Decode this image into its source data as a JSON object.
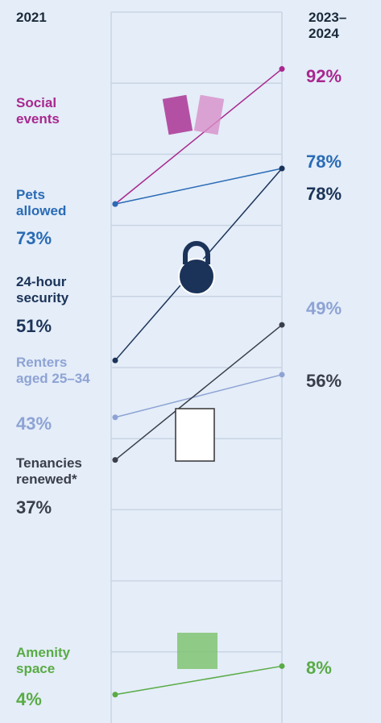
{
  "chart_data": {
    "type": "slope",
    "categories": [
      "2021",
      "2023–2024"
    ],
    "ylim": [
      0,
      100
    ],
    "yticks": [
      10,
      20,
      30,
      40,
      50,
      60,
      70,
      80,
      90
    ],
    "grid": true,
    "series": [
      {
        "name": "Social events",
        "color": "#a8288f",
        "values": [
          73,
          92
        ],
        "value_labels": [
          null,
          "92%"
        ]
      },
      {
        "name": "Pets allowed",
        "color": "#2a6bb5",
        "values": [
          73,
          78
        ],
        "value_labels": [
          "73%",
          "78%"
        ]
      },
      {
        "name": "24-hour security",
        "color": "#1b3358",
        "values": [
          51,
          78
        ],
        "value_labels": [
          "51%",
          "78%"
        ]
      },
      {
        "name": "Renters aged 25–34",
        "color": "#8ea3d4",
        "values": [
          43,
          49
        ],
        "value_labels": [
          "43%",
          "49%"
        ]
      },
      {
        "name": "Tenancies renewed*",
        "color": "#3a3f4a",
        "values": [
          37,
          56
        ],
        "value_labels": [
          "37%",
          "56%"
        ]
      },
      {
        "name": "Amenity space",
        "color": "#5aab46",
        "values": [
          4,
          8
        ],
        "value_labels": [
          "4%",
          "8%"
        ]
      }
    ]
  }
}
